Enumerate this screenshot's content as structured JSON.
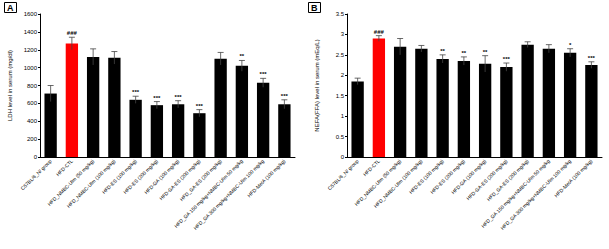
{
  "chart_data": [
    {
      "type": "bar",
      "title": "A",
      "y_label": "LDH level in serum (mg/dl)",
      "categories": [
        "C57BL/6_N/ group",
        "HFD-CTL",
        "HFD_NMBC-Ulm (50 mg/kg)",
        "HFD_NMBC-Ulm (100 mg/kg)",
        "HFD-ES (100 mg/kg)",
        "HFD-ES (200 mg/kg)",
        "HFD-GA (100 mg/kg)",
        "HFD-GA-ES (200 mg/kg)",
        "HFD_GA-ES (200 mg/kg)",
        "HFD_GA 150 mg/kg+NMBC-Ulm 50 mg/kg",
        "HFD_GA 300 mg/kg+NMBC-Ulm 100 mg/kg",
        "HFD-MetA (100 mg/kg)"
      ],
      "values": [
        710,
        1270,
        1120,
        1110,
        640,
        580,
        590,
        490,
        1100,
        1020,
        830,
        590
      ],
      "errors": [
        90,
        70,
        90,
        70,
        40,
        40,
        40,
        40,
        70,
        60,
        50,
        50
      ],
      "significance": [
        null,
        "###",
        null,
        null,
        "***",
        "***",
        "***",
        "***",
        null,
        "**",
        "***",
        "***"
      ],
      "colors": [
        "#000000",
        "#ff0000",
        "#000000",
        "#000000",
        "#000000",
        "#000000",
        "#000000",
        "#000000",
        "#000000",
        "#000000",
        "#000000",
        "#000000"
      ],
      "ylim": [
        0,
        1600
      ],
      "yticks": [
        0,
        200,
        400,
        600,
        800,
        1000,
        1200,
        1400,
        1600
      ],
      "grid": false
    },
    {
      "type": "bar",
      "title": "B",
      "y_label": "NEFA(FFA) level in serum (mEq/L)",
      "categories": [
        "C57BL/6_N/ group",
        "HFD-CTL",
        "HFD_NMBC-Ulm (50 mg/kg)",
        "HFD_NMBC-Ulm (100 mg/kg)",
        "HFD-ES (100 mg/kg)",
        "HFD-ES (200 mg/kg)",
        "HFD-GA (100 mg/kg)",
        "HFD-GA-ES (200 mg/kg)",
        "HFD_GA-ES (200 mg/kg)",
        "HFD_GA 150 mg/kg+NMBC-Ulm 50 mg/kg",
        "HFD_GA 300 mg/kg+NMBC-Ulm 100 mg/kg",
        "HFD-MetA (100 mg/kg)"
      ],
      "values": [
        1.85,
        2.9,
        2.7,
        2.65,
        2.4,
        2.35,
        2.28,
        2.2,
        2.75,
        2.65,
        2.55,
        2.25
      ],
      "errors": [
        0.08,
        0.07,
        0.2,
        0.08,
        0.1,
        0.1,
        0.2,
        0.1,
        0.07,
        0.1,
        0.1,
        0.08
      ],
      "significance": [
        null,
        "###",
        null,
        null,
        "**",
        "**",
        "**",
        "***",
        null,
        null,
        "*",
        "***"
      ],
      "colors": [
        "#000000",
        "#ff0000",
        "#000000",
        "#000000",
        "#000000",
        "#000000",
        "#000000",
        "#000000",
        "#000000",
        "#000000",
        "#000000",
        "#000000"
      ],
      "ylim": [
        0,
        3.5
      ],
      "yticks": [
        0,
        0.5,
        1,
        1.5,
        2,
        2.5,
        3,
        3.5
      ],
      "grid": false
    }
  ]
}
